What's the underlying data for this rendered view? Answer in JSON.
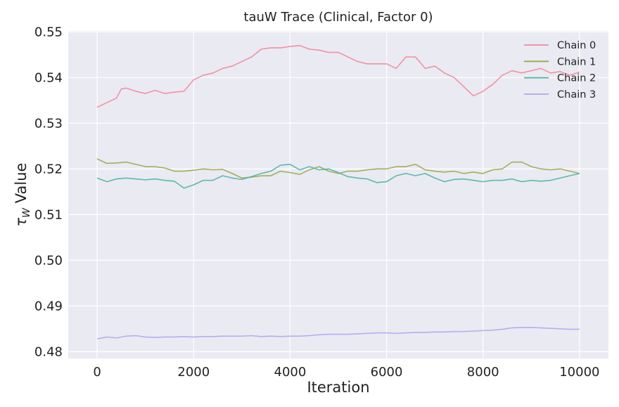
{
  "chart_data": {
    "type": "line",
    "title": "tauW Trace (Clinical, Factor 0)",
    "xlabel": "Iteration",
    "ylabel_symbol": "τ",
    "ylabel_subscript": "W",
    "ylabel_text": " Value",
    "xlim": [
      -600,
      10600
    ],
    "ylim": [
      0.4785,
      0.5502
    ],
    "xticks": [
      0,
      2000,
      4000,
      6000,
      8000,
      10000
    ],
    "xtick_labels": [
      "0",
      "2000",
      "4000",
      "6000",
      "8000",
      "10000"
    ],
    "yticks": [
      0.48,
      0.49,
      0.5,
      0.51,
      0.52,
      0.53,
      0.54,
      0.55
    ],
    "ytick_labels": [
      "0.48",
      "0.49",
      "0.50",
      "0.51",
      "0.52",
      "0.53",
      "0.54",
      "0.55"
    ],
    "grid": true,
    "legend_position": "top-right",
    "colors": {
      "background": "#eaeaf2",
      "grid": "#ffffff"
    },
    "series": [
      {
        "name": "Chain 0",
        "color": "#f08a9a",
        "x": [
          0,
          200,
          400,
          500,
          600,
          800,
          1000,
          1200,
          1400,
          1600,
          1800,
          2000,
          2200,
          2400,
          2600,
          2800,
          3000,
          3200,
          3400,
          3600,
          3800,
          4000,
          4200,
          4400,
          4600,
          4800,
          5000,
          5200,
          5400,
          5600,
          5800,
          6000,
          6200,
          6400,
          6600,
          6800,
          7000,
          7200,
          7400,
          7600,
          7800,
          8000,
          8200,
          8400,
          8600,
          8800,
          9000,
          9200,
          9400,
          9600,
          9800,
          10000
        ],
        "y": [
          0.5335,
          0.5345,
          0.5355,
          0.5375,
          0.5377,
          0.537,
          0.5365,
          0.5372,
          0.5365,
          0.5368,
          0.537,
          0.5395,
          0.5405,
          0.541,
          0.542,
          0.5425,
          0.5435,
          0.5445,
          0.5462,
          0.5465,
          0.5465,
          0.5468,
          0.547,
          0.5462,
          0.546,
          0.5455,
          0.5455,
          0.5445,
          0.5435,
          0.543,
          0.543,
          0.543,
          0.542,
          0.5445,
          0.5445,
          0.542,
          0.5425,
          0.541,
          0.54,
          0.538,
          0.536,
          0.537,
          0.5385,
          0.5405,
          0.5415,
          0.541,
          0.5415,
          0.542,
          0.541,
          0.5413,
          0.5405,
          0.5412
        ]
      },
      {
        "name": "Chain 1",
        "color": "#9aa84a",
        "x": [
          0,
          200,
          400,
          600,
          800,
          1000,
          1200,
          1400,
          1600,
          1800,
          2000,
          2200,
          2400,
          2600,
          2800,
          3000,
          3200,
          3400,
          3600,
          3800,
          4000,
          4200,
          4400,
          4600,
          4800,
          5000,
          5200,
          5400,
          5600,
          5800,
          6000,
          6200,
          6400,
          6600,
          6800,
          7000,
          7200,
          7400,
          7600,
          7800,
          8000,
          8200,
          8400,
          8600,
          8800,
          9000,
          9200,
          9400,
          9600,
          9800,
          10000
        ],
        "y": [
          0.5222,
          0.5212,
          0.5213,
          0.5215,
          0.521,
          0.5205,
          0.5205,
          0.5202,
          0.5195,
          0.5195,
          0.5197,
          0.52,
          0.5198,
          0.5199,
          0.519,
          0.518,
          0.5182,
          0.5185,
          0.5185,
          0.5195,
          0.5192,
          0.5188,
          0.5198,
          0.5205,
          0.5195,
          0.519,
          0.5195,
          0.5195,
          0.5198,
          0.52,
          0.52,
          0.5205,
          0.5205,
          0.521,
          0.5198,
          0.5195,
          0.5193,
          0.5195,
          0.519,
          0.5193,
          0.519,
          0.5198,
          0.52,
          0.5215,
          0.5215,
          0.5205,
          0.52,
          0.5198,
          0.52,
          0.5195,
          0.519
        ]
      },
      {
        "name": "Chain 2",
        "color": "#4fb3a9",
        "x": [
          0,
          200,
          400,
          600,
          800,
          1000,
          1200,
          1400,
          1600,
          1800,
          2000,
          2200,
          2400,
          2600,
          2800,
          3000,
          3200,
          3400,
          3600,
          3800,
          4000,
          4200,
          4400,
          4600,
          4800,
          5000,
          5200,
          5400,
          5600,
          5800,
          6000,
          6200,
          6400,
          6600,
          6800,
          7000,
          7200,
          7400,
          7600,
          7800,
          8000,
          8200,
          8400,
          8600,
          8800,
          9000,
          9200,
          9400,
          9600,
          9800,
          10000
        ],
        "y": [
          0.518,
          0.5172,
          0.5178,
          0.518,
          0.5178,
          0.5176,
          0.5178,
          0.5175,
          0.5173,
          0.5158,
          0.5165,
          0.5175,
          0.5175,
          0.5185,
          0.518,
          0.5177,
          0.5183,
          0.519,
          0.5195,
          0.5208,
          0.521,
          0.5198,
          0.5205,
          0.5198,
          0.52,
          0.5192,
          0.5183,
          0.518,
          0.5178,
          0.517,
          0.5172,
          0.5185,
          0.519,
          0.5185,
          0.519,
          0.518,
          0.5172,
          0.5177,
          0.5178,
          0.5175,
          0.5172,
          0.5175,
          0.5175,
          0.5178,
          0.5172,
          0.5175,
          0.5173,
          0.5175,
          0.518,
          0.5185,
          0.519
        ]
      },
      {
        "name": "Chain 3",
        "color": "#b3a6ee",
        "x": [
          0,
          200,
          400,
          600,
          800,
          1000,
          1200,
          1400,
          1600,
          1800,
          2000,
          2200,
          2400,
          2600,
          2800,
          3000,
          3200,
          3400,
          3600,
          3800,
          4000,
          4200,
          4400,
          4600,
          4800,
          5000,
          5200,
          5400,
          5600,
          5800,
          6000,
          6200,
          6400,
          6600,
          6800,
          7000,
          7200,
          7400,
          7600,
          7800,
          8000,
          8200,
          8400,
          8600,
          8800,
          9000,
          9200,
          9400,
          9600,
          9800,
          10000
        ],
        "y": [
          0.4828,
          0.4832,
          0.483,
          0.4834,
          0.4835,
          0.4832,
          0.4831,
          0.4832,
          0.4832,
          0.4833,
          0.4832,
          0.4833,
          0.4833,
          0.4834,
          0.4834,
          0.4834,
          0.4835,
          0.4833,
          0.4834,
          0.4833,
          0.4834,
          0.4834,
          0.4835,
          0.4837,
          0.4838,
          0.4838,
          0.4838,
          0.4839,
          0.484,
          0.4841,
          0.4841,
          0.484,
          0.4841,
          0.4842,
          0.4842,
          0.4843,
          0.4843,
          0.4844,
          0.4844,
          0.4845,
          0.4846,
          0.4847,
          0.4849,
          0.4852,
          0.4853,
          0.4853,
          0.4852,
          0.4851,
          0.485,
          0.4849,
          0.4849
        ]
      }
    ]
  }
}
